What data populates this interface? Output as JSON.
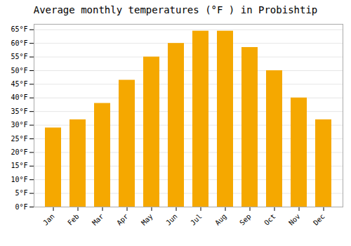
{
  "chart_data": {
    "type": "bar",
    "title": "Average monthly temperatures (°F ) in Probishtip",
    "categories": [
      "Jan",
      "Feb",
      "Mar",
      "Apr",
      "May",
      "Jun",
      "Jul",
      "Aug",
      "Sep",
      "Oct",
      "Nov",
      "Dec"
    ],
    "values": [
      29,
      32,
      38,
      46.5,
      55,
      60,
      64.5,
      64.5,
      58.5,
      50,
      40,
      32
    ],
    "color": "#F5A800",
    "ylim": [
      0,
      67
    ],
    "yticks": [
      {
        "value": 0,
        "label": "0°F"
      },
      {
        "value": 5,
        "label": "5°F"
      },
      {
        "value": 10,
        "label": "10°F"
      },
      {
        "value": 15,
        "label": "15°F"
      },
      {
        "value": 20,
        "label": "20°F"
      },
      {
        "value": 25,
        "label": "25°F"
      },
      {
        "value": 30,
        "label": "30°F"
      },
      {
        "value": 35,
        "label": "35°F"
      },
      {
        "value": 40,
        "label": "40°F"
      },
      {
        "value": 45,
        "label": "45°F"
      },
      {
        "value": 50,
        "label": "50°F"
      },
      {
        "value": 55,
        "label": "55°F"
      },
      {
        "value": 60,
        "label": "60°F"
      },
      {
        "value": 65,
        "label": "65°F"
      }
    ],
    "grid": true
  }
}
